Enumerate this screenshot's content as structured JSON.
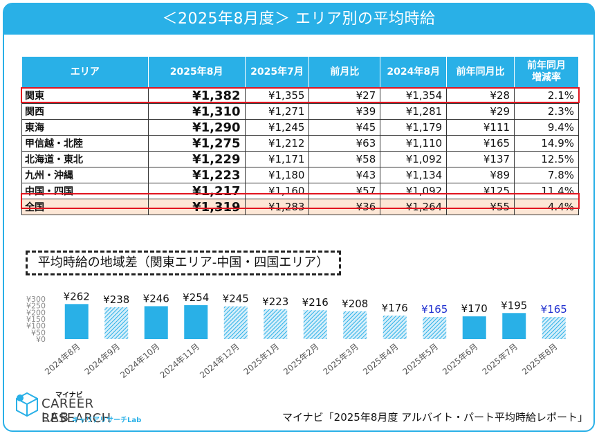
{
  "title": "＜2025年8月度＞ エリア別の平均時給",
  "table": {
    "headers": [
      "エリア",
      "2025年8月",
      "2025年7月",
      "前月比",
      "2024年8月",
      "前年同月比",
      "前年同月\n増減率"
    ],
    "rows": [
      [
        "関東",
        "¥1,382",
        "¥1,355",
        "¥27",
        "¥1,354",
        "¥28",
        "2.1%"
      ],
      [
        "関西",
        "¥1,310",
        "¥1,271",
        "¥39",
        "¥1,281",
        "¥29",
        "2.3%"
      ],
      [
        "東海",
        "¥1,290",
        "¥1,245",
        "¥45",
        "¥1,179",
        "¥111",
        "9.4%"
      ],
      [
        "甲信越・北陸",
        "¥1,275",
        "¥1,212",
        "¥63",
        "¥1,110",
        "¥165",
        "14.9%"
      ],
      [
        "北海道・東北",
        "¥1,229",
        "¥1,171",
        "¥58",
        "¥1,092",
        "¥137",
        "12.5%"
      ],
      [
        "九州・沖縄",
        "¥1,223",
        "¥1,180",
        "¥43",
        "¥1,134",
        "¥89",
        "7.8%"
      ],
      [
        "中国・四国",
        "¥1,217",
        "¥1,160",
        "¥57",
        "¥1,092",
        "¥125",
        "11.4%"
      ],
      [
        "全国",
        "¥1,319",
        "¥1,283",
        "¥36",
        "¥1,264",
        "¥55",
        "4.4%"
      ]
    ]
  },
  "chart_subtitle": "平均時給の地域差（関東エリア-中国・四国エリア）",
  "chart_data": {
    "type": "bar",
    "title": "平均時給の地域差（関東エリア-中国・四国エリア）",
    "categories": [
      "2024年8月",
      "2024年9月",
      "2024年10月",
      "2024年11月",
      "2024年12月",
      "2025年1月",
      "2025年2月",
      "2025年3月",
      "2025年4月",
      "2025年5月",
      "2025年6月",
      "2025年7月",
      "2025年8月"
    ],
    "values": [
      262,
      238,
      246,
      254,
      245,
      223,
      216,
      208,
      176,
      165,
      170,
      195,
      165
    ],
    "data_labels": [
      "¥262",
      "¥238",
      "¥246",
      "¥254",
      "¥245",
      "¥223",
      "¥216",
      "¥208",
      "¥176",
      "¥165",
      "¥170",
      "¥195",
      "¥165"
    ],
    "bar_style": [
      "solid",
      "hatched",
      "solid",
      "solid",
      "hatched",
      "hatched",
      "hatched",
      "hatched",
      "hatched",
      "hatched",
      "solid",
      "solid",
      "hatched"
    ],
    "label_colors": [
      "#111111",
      "#111111",
      "#111111",
      "#111111",
      "#111111",
      "#111111",
      "#111111",
      "#111111",
      "#111111",
      "#1f2fcf",
      "#111111",
      "#111111",
      "#1f2fcf"
    ],
    "yticks": [
      0,
      50,
      100,
      150,
      200,
      250,
      300
    ],
    "ytick_labels": [
      "¥0",
      "¥50",
      "¥100",
      "¥150",
      "¥200",
      "¥250",
      "¥300"
    ],
    "ylim": [
      0,
      300
    ],
    "xlabel": "",
    "ylabel": ""
  },
  "colors": {
    "accent": "#29b0e7",
    "highlight": "#e1141f",
    "total_row": "#fde7d6"
  },
  "logo": {
    "small": "マイナビ",
    "line1": "CAREER RESEARCH",
    "line2": "LAB",
    "kana": "キャリアリサーチLab"
  },
  "source": "マイナビ「2025年8月度 アルバイト・パート平均時給レポート」"
}
